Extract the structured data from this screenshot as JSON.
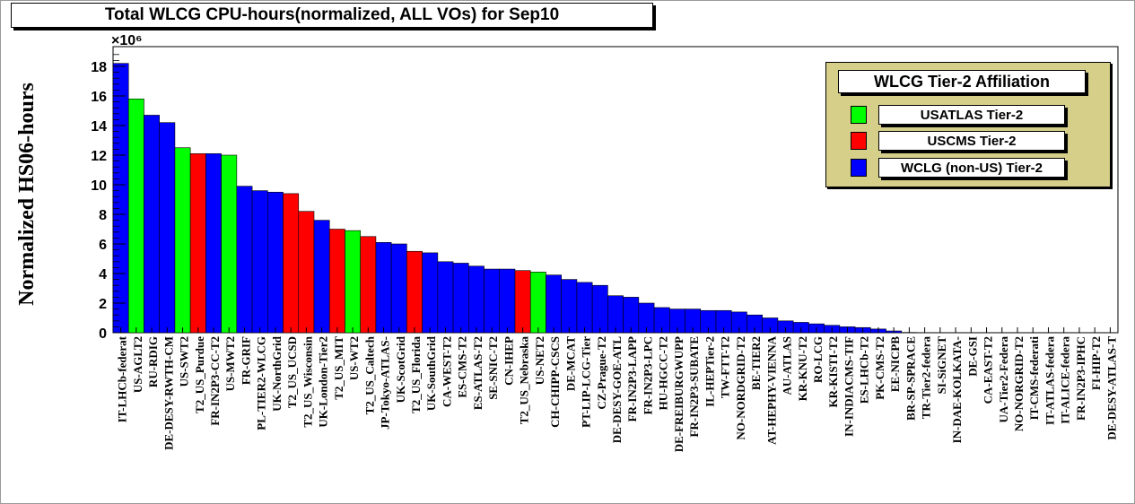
{
  "chart_title": "Total WLCG CPU-hours(normalized, ALL VOs) for Sep10",
  "chart_data": {
    "type": "bar",
    "title": "Total WLCG CPU-hours(normalized, ALL VOs) for Sep10",
    "xlabel": "",
    "ylabel": "Normalized HS06-hours",
    "y_multiplier": "×10⁶",
    "ylim": [
      0,
      19
    ],
    "yticks": [
      0,
      2,
      4,
      6,
      8,
      10,
      12,
      14,
      16,
      18
    ],
    "grid": false,
    "legend_position": "top-right",
    "categories": [
      "IT-LHCb-federat",
      "US-AGLT2",
      "RU-RDIG",
      "DE-DESY-RWTH-CM",
      "US-SWT2",
      "T2_US_Purdue",
      "FR-IN2P3-CC-T2",
      "US-MWT2",
      "FR-GRIF",
      "PL-TIER2-WLCG",
      "UK-NorthGrid",
      "T2_US_UCSD",
      "T2_US_Wisconsin",
      "UK-London-Tier2",
      "T2_US_MIT",
      "US-WT2",
      "T2_US_Caltech",
      "JP-Tokyo-ATLAS-",
      "UK-ScotGrid",
      "T2_US_Florida",
      "UK-SouthGrid",
      "CA-WEST-T2",
      "ES-CMS-T2",
      "ES-ATLAS-T2",
      "SE-SNIC-T2",
      "CN-IHEP",
      "T2_US_Nebraska",
      "US-NET2",
      "CH-CHIPP-CSCS",
      "DE-MCAT",
      "PT-LIP-LCG-Tier",
      "CZ-Prague-T2",
      "DE-DESY-GOE-ATL",
      "FR-IN2P3-LAPP",
      "FR-IN2P3-LPC",
      "HU-HGCC-T2",
      "DE-FREIBURGWUPP",
      "FR-IN2P3-SUBATE",
      "IL-HEPTier-2",
      "TW-FTT-T2",
      "NO-NORDGRID-T2",
      "BE-TIER2",
      "AT-HEPHY-VIENNA",
      "AU-ATLAS",
      "KR-KNU-T2",
      "RO-LCG",
      "KR-KISTI-T2",
      "IN-INDIACMS-TIF",
      "ES-LHCb-T2",
      "PK-CMS-T2",
      "EE-NICPB",
      "BR-SP-SPRACE",
      "TR-Tier2-federa",
      "SI-SiGNET",
      "IN-DAE-KOLKATA-",
      "DE-GSI",
      "CA-EAST-T2",
      "UA-Tier2-Federa",
      "NO-NORGRID-T2",
      "IT-CMS-federati",
      "IT-ATLAS-federa",
      "IT-ALICE-federa",
      "FR-IN2P3-IPHC",
      "FI-HIP-T2",
      "DE-DESY-ATLAS-T"
    ],
    "values": [
      18.2,
      15.8,
      14.7,
      14.2,
      12.5,
      12.1,
      12.1,
      12.0,
      9.9,
      9.6,
      9.5,
      9.4,
      8.2,
      7.6,
      7.0,
      6.9,
      6.5,
      6.1,
      6.0,
      5.5,
      5.4,
      4.8,
      4.7,
      4.5,
      4.3,
      4.3,
      4.2,
      4.1,
      3.9,
      3.6,
      3.4,
      3.2,
      2.5,
      2.4,
      2.0,
      1.7,
      1.6,
      1.6,
      1.5,
      1.5,
      1.4,
      1.2,
      1.0,
      0.8,
      0.7,
      0.6,
      0.5,
      0.4,
      0.35,
      0.25,
      0.12,
      0.02,
      0.01,
      0,
      0,
      0,
      0,
      0,
      0,
      0,
      0,
      0,
      0,
      0,
      0
    ],
    "groups": [
      "WCLG",
      "USATLAS",
      "WCLG",
      "WCLG",
      "USATLAS",
      "USCMS",
      "WCLG",
      "USATLAS",
      "WCLG",
      "WCLG",
      "WCLG",
      "USCMS",
      "USCMS",
      "WCLG",
      "USCMS",
      "USATLAS",
      "USCMS",
      "WCLG",
      "WCLG",
      "USCMS",
      "WCLG",
      "WCLG",
      "WCLG",
      "WCLG",
      "WCLG",
      "WCLG",
      "USCMS",
      "USATLAS",
      "WCLG",
      "WCLG",
      "WCLG",
      "WCLG",
      "WCLG",
      "WCLG",
      "WCLG",
      "WCLG",
      "WCLG",
      "WCLG",
      "WCLG",
      "WCLG",
      "WCLG",
      "WCLG",
      "WCLG",
      "WCLG",
      "WCLG",
      "WCLG",
      "WCLG",
      "WCLG",
      "WCLG",
      "WCLG",
      "WCLG",
      "WCLG",
      "WCLG",
      "WCLG",
      "WCLG",
      "WCLG",
      "WCLG",
      "WCLG",
      "WCLG",
      "WCLG",
      "WCLG",
      "WCLG",
      "WCLG",
      "WCLG",
      "WCLG"
    ],
    "legend_title": "WLCG Tier-2 Affiliation",
    "legend": [
      {
        "key": "USATLAS",
        "name": "USATLAS Tier-2",
        "color": "#00ff00"
      },
      {
        "key": "USCMS",
        "name": "USCMS Tier-2",
        "color": "#ff0000"
      },
      {
        "key": "WCLG",
        "name": "WCLG (non-US) Tier-2",
        "color": "#0000ff"
      }
    ]
  }
}
